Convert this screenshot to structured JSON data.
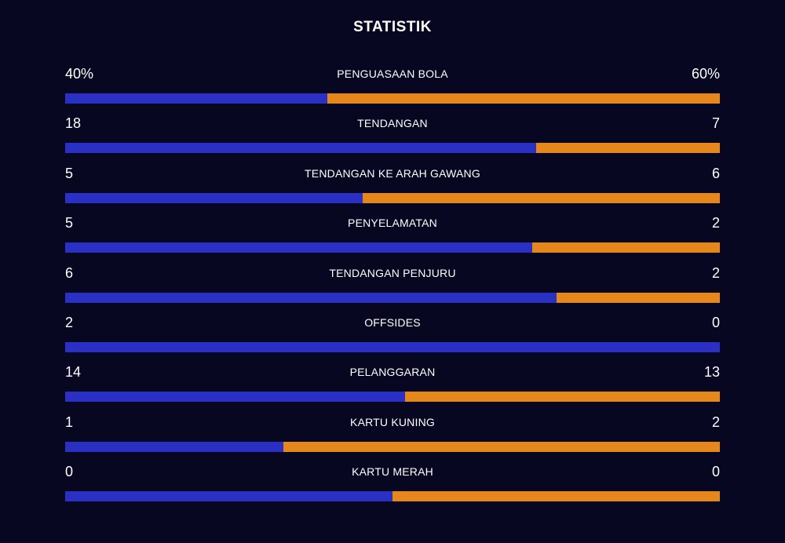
{
  "title": "STATISTIK",
  "colors": {
    "background": "#070722",
    "home": "#2a30c4",
    "away": "#e5871b"
  },
  "stats": [
    {
      "label": "PENGUASAAN BOLA",
      "home": "40%",
      "away": "60%",
      "home_share": 0.4
    },
    {
      "label": "TENDANGAN",
      "home": "18",
      "away": "7",
      "home_share": 0.72
    },
    {
      "label": "TENDANGAN KE ARAH GAWANG",
      "home": "5",
      "away": "6",
      "home_share": 0.455
    },
    {
      "label": "PENYELAMATAN",
      "home": "5",
      "away": "2",
      "home_share": 0.714
    },
    {
      "label": "TENDANGAN PENJURU",
      "home": "6",
      "away": "2",
      "home_share": 0.75
    },
    {
      "label": "OFFSIDES",
      "home": "2",
      "away": "0",
      "home_share": 1.0
    },
    {
      "label": "PELANGGARAN",
      "home": "14",
      "away": "13",
      "home_share": 0.519
    },
    {
      "label": "KARTU KUNING",
      "home": "1",
      "away": "2",
      "home_share": 0.333
    },
    {
      "label": "KARTU MERAH",
      "home": "0",
      "away": "0",
      "home_share": 0.5
    }
  ]
}
